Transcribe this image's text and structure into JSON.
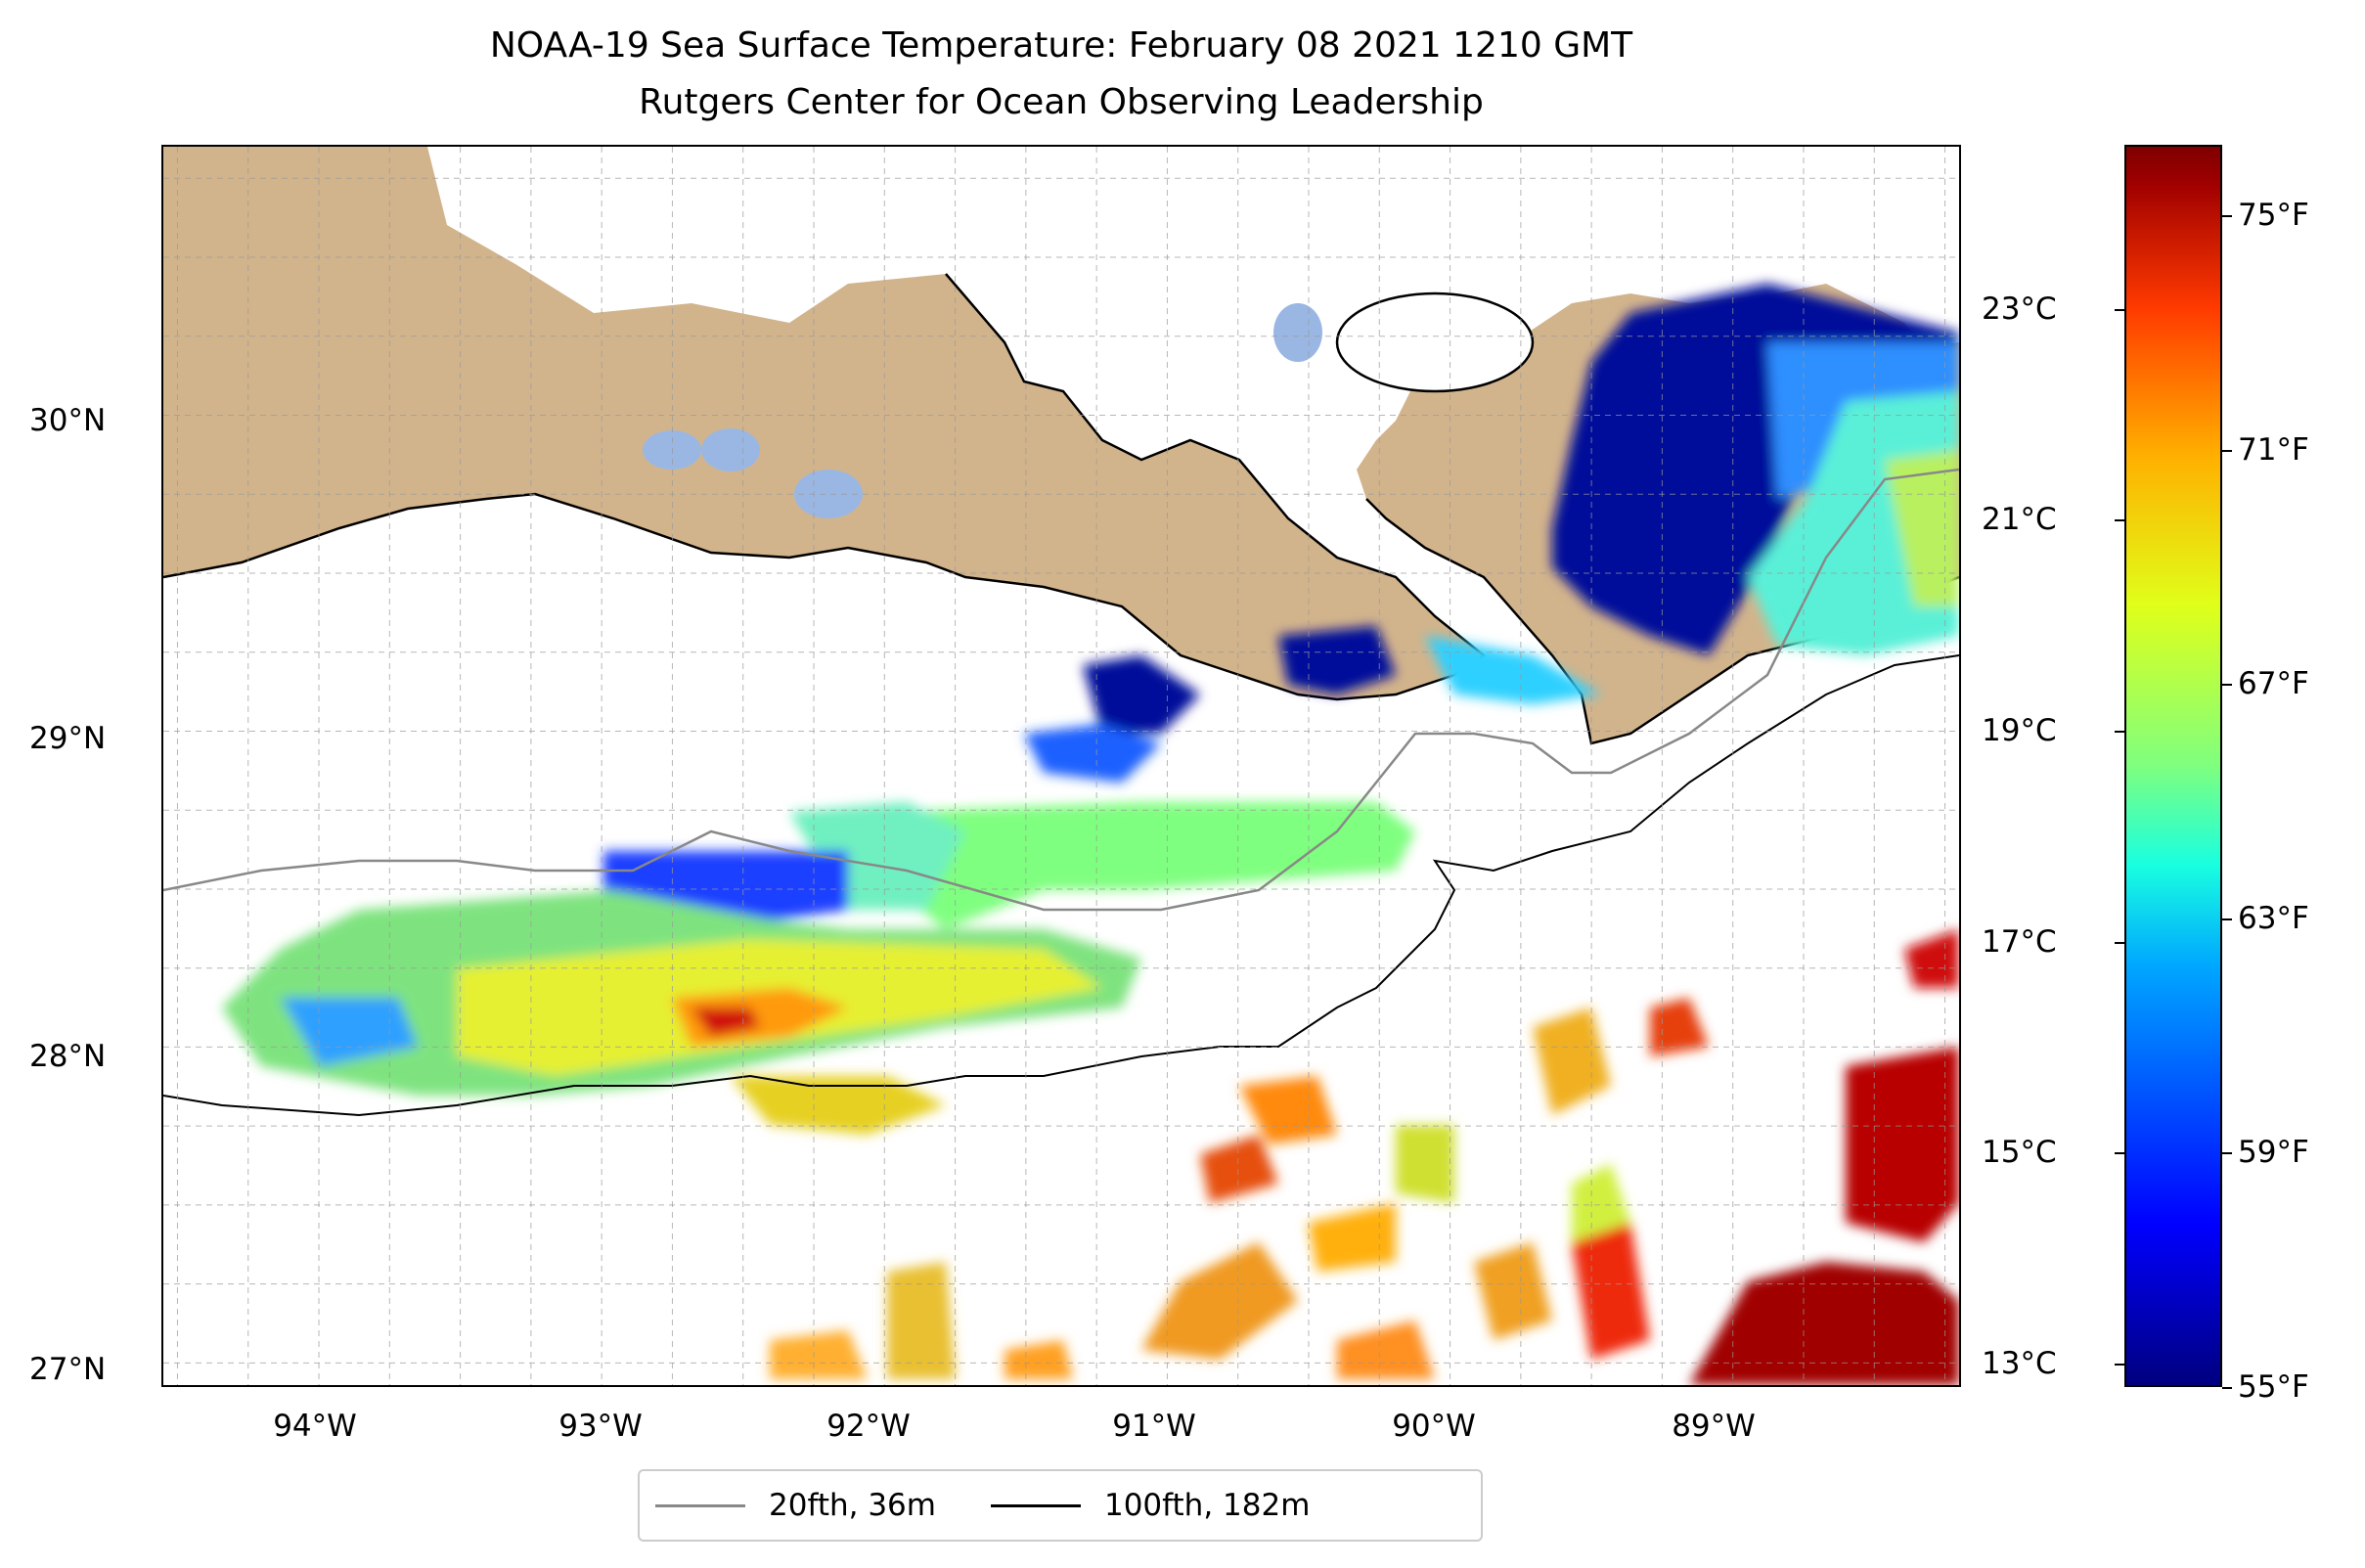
{
  "title_line1": "NOAA-19 Sea Surface Temperature: February 08 2021 1210 GMT",
  "title_line2": "Rutgers Center for Ocean Observing Leadership",
  "map": {
    "x_ticks": [
      "94°W",
      "93°W",
      "92°W",
      "91°W",
      "90°W",
      "89°W"
    ],
    "y_ticks": [
      "30°N",
      "29°N",
      "28°N",
      "27°N"
    ],
    "x_tick_values": [
      -94,
      -93,
      -92,
      -91,
      -90,
      -89
    ],
    "y_tick_values": [
      30,
      29,
      28,
      27
    ],
    "lon_range": [
      -94.55,
      -88.2
    ],
    "lat_range": [
      26.93,
      30.85
    ],
    "land_color": "#d2b48c",
    "gridlines": true
  },
  "legend": [
    {
      "label": "20fth, 36m",
      "color": "#888888"
    },
    {
      "label": "100fth, 182m",
      "color": "#000000"
    }
  ],
  "colorbar": {
    "colormap": "jet",
    "fahrenheit_ticks": [
      "75°F",
      "71°F",
      "67°F",
      "63°F",
      "59°F",
      "55°F"
    ],
    "fahrenheit_values": [
      75,
      71,
      67,
      63,
      59,
      55
    ],
    "celsius_ticks": [
      "23°C",
      "21°C",
      "19°C",
      "17°C",
      "15°C",
      "13°C"
    ],
    "celsius_values": [
      23,
      21,
      19,
      17,
      15,
      13
    ],
    "range_f": [
      55,
      76.2
    ]
  }
}
